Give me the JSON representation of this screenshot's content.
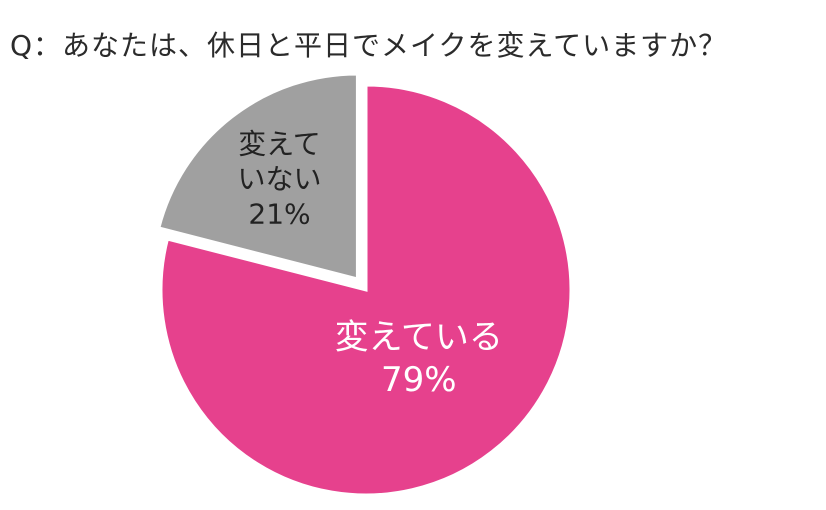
{
  "chart_data": {
    "type": "pie",
    "title": "Q：あなたは、休日と平日でメイクを変えていますか？",
    "slices": [
      {
        "label_lines": [
          "変えている"
        ],
        "value": 79,
        "value_text": "79%",
        "color": "#e6418d",
        "text_color": "#ffffff"
      },
      {
        "label_lines": [
          "変えて",
          "いない"
        ],
        "value": 21,
        "value_text": "21%",
        "color": "#a0a0a0",
        "text_color": "#222222"
      }
    ],
    "start": "12 o'clock",
    "direction": "clockwise",
    "exploded_slice": "変えていない",
    "legend": "none"
  }
}
